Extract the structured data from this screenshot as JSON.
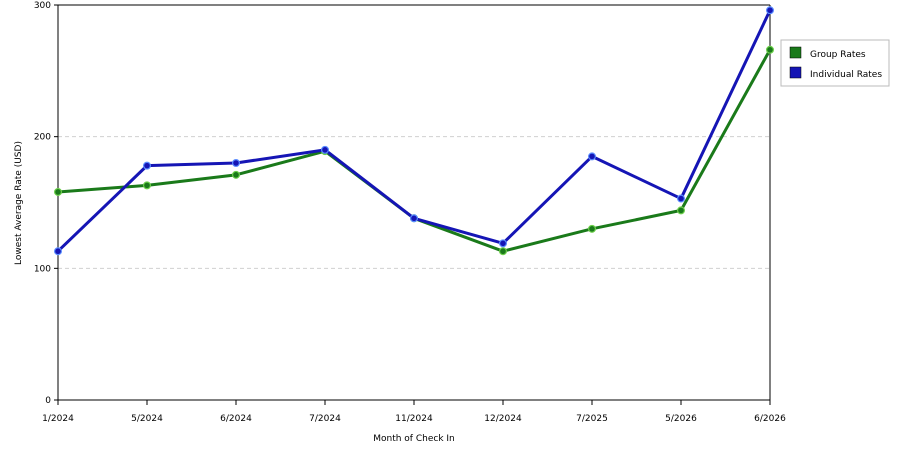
{
  "chart_data": {
    "type": "line",
    "categories": [
      "1/2024",
      "5/2024",
      "6/2024",
      "7/2024",
      "11/2024",
      "12/2024",
      "7/2025",
      "5/2026",
      "6/2026"
    ],
    "series": [
      {
        "name": "Group Rates",
        "color": "#1a7a1a",
        "values": [
          158,
          163,
          171,
          189,
          138,
          113,
          130,
          144,
          266
        ]
      },
      {
        "name": "Individual Rates",
        "color": "#1515b5",
        "values": [
          113,
          178,
          180,
          190,
          138,
          119,
          185,
          153,
          296
        ]
      }
    ],
    "xlabel": "Month of Check In",
    "ylabel": "Lowest Average Rate (USD)",
    "ylim": [
      0,
      300
    ],
    "yticks": [
      0,
      100,
      200,
      300
    ],
    "grid": "horizontal dashed",
    "legend_position": "right"
  }
}
